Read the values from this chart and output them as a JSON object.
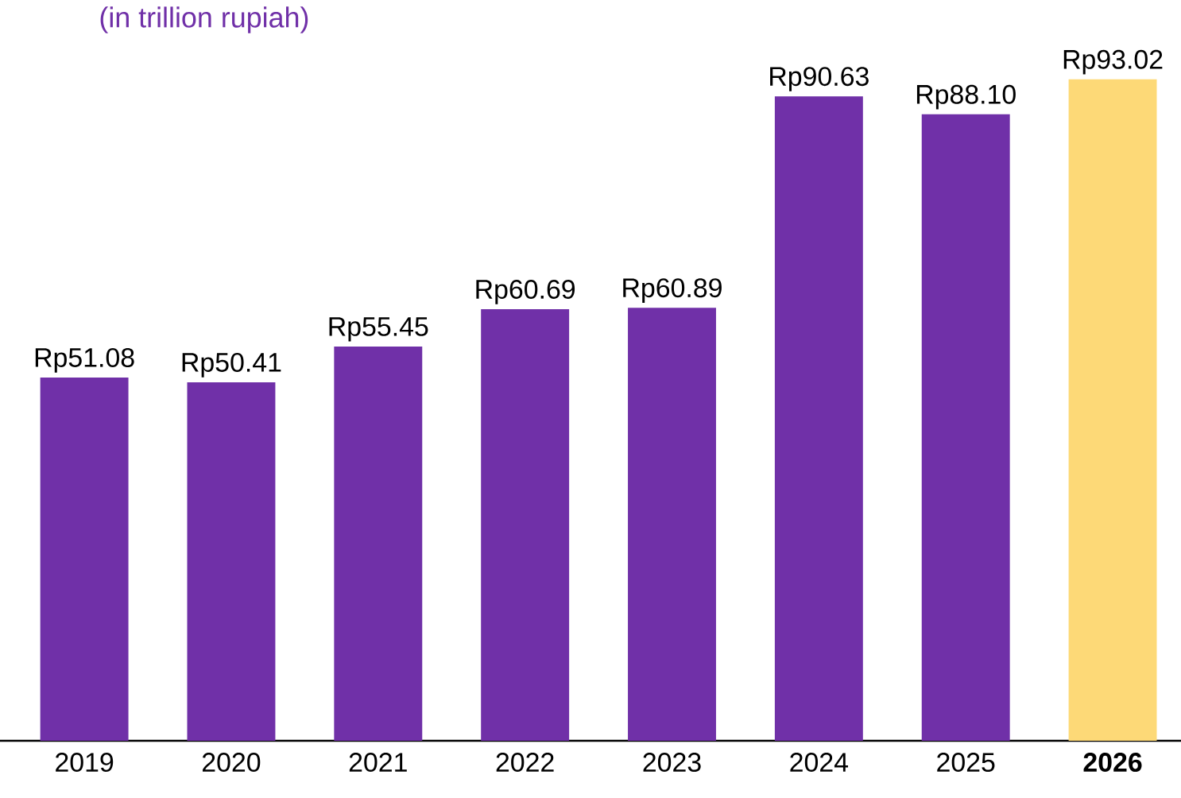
{
  "chart_data": {
    "type": "bar",
    "subtitle": "(in trillion rupiah)",
    "categories": [
      "2019",
      "2020",
      "2021",
      "2022",
      "2023",
      "2024",
      "2025",
      "**2026**"
    ],
    "values": [
      51.08,
      50.41,
      55.45,
      60.69,
      60.89,
      90.63,
      88.1,
      93.02
    ],
    "value_labels": [
      "Rp51.08",
      "Rp50.41",
      "Rp55.45",
      "Rp60.69",
      "Rp60.89",
      "Rp90.63",
      "Rp88.10",
      "Rp93.02"
    ],
    "colors": [
      "#7030a8",
      "#7030a8",
      "#7030a8",
      "#7030a8",
      "#7030a8",
      "#7030a8",
      "#7030a8",
      "#fdd977"
    ]
  }
}
